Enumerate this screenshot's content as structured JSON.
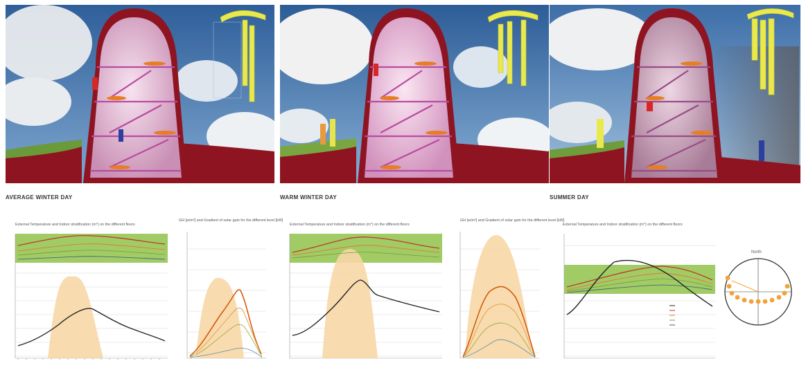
{
  "sections": [
    {
      "id": "average",
      "caption": "AVERAGE WINTER DAY",
      "sun": "soft"
    },
    {
      "id": "warm",
      "caption": "WARM WINTER DAY",
      "sun": "bright"
    },
    {
      "id": "summer",
      "caption": "SUMMER DAY",
      "sun": "high"
    }
  ],
  "chart_titles": {
    "stratification": "External Temperature and Indoor  stratification (m°) on the different floors",
    "solar_gain": "GH [w/m²] and Gradient of solar gain for the different level [kW]"
  },
  "sun_diagram": {
    "label": "North"
  },
  "colors": {
    "wall_red": "#8e1421",
    "comfort_band": "#8fc24a",
    "solar_fill": "#f7d7a6",
    "sky": "#3f6fa8",
    "curve_external": "#333333",
    "curve_floor": "#c0392b",
    "sun_dot": "#f2a23a"
  }
}
